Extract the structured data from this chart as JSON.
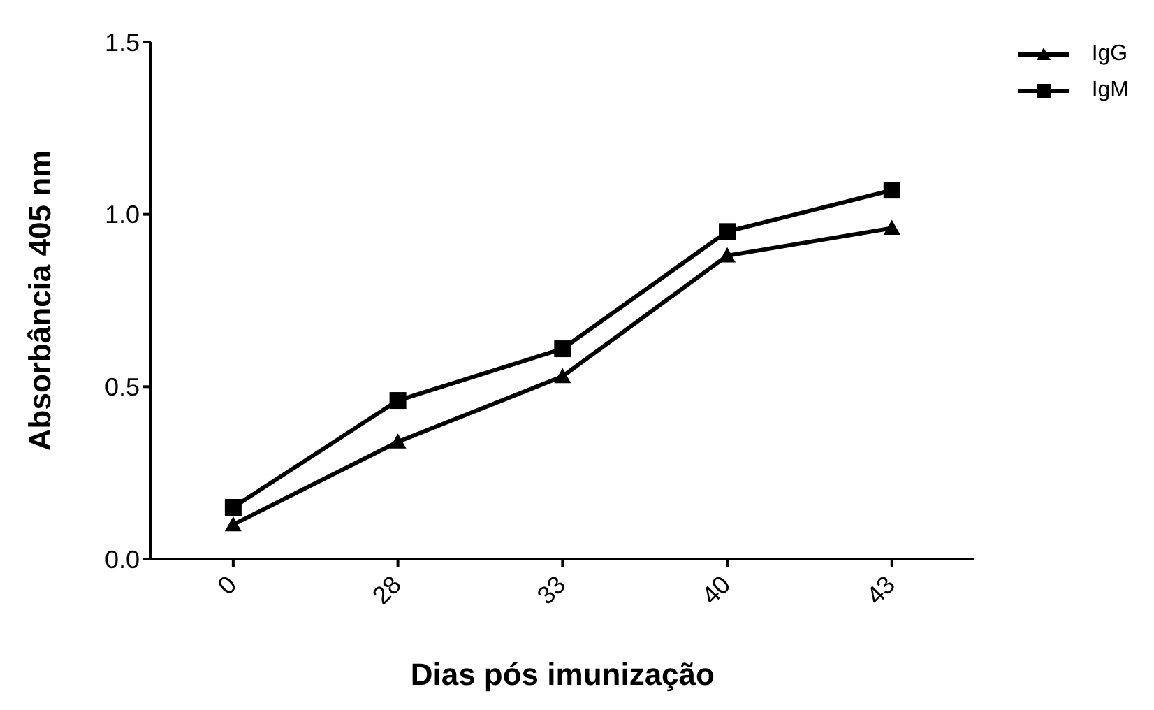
{
  "chart_data": {
    "type": "line",
    "xlabel": "Dias pós imunização",
    "ylabel": "Absorbância 405 nm",
    "categories": [
      "0",
      "28",
      "33",
      "40",
      "43"
    ],
    "series": [
      {
        "name": "IgG",
        "color": "#000000",
        "marker": "triangle",
        "values": [
          0.1,
          0.34,
          0.53,
          0.88,
          0.96
        ]
      },
      {
        "name": "IgM",
        "color": "#000000",
        "marker": "square",
        "values": [
          0.15,
          0.46,
          0.61,
          0.95,
          1.07
        ]
      }
    ],
    "ylim": [
      0,
      1.5
    ],
    "yticks": [
      {
        "value": 0,
        "label": "0.0"
      },
      {
        "value": 0.5,
        "label": "0.5"
      },
      {
        "value": 1,
        "label": "1.0"
      },
      {
        "value": 1.5,
        "label": "1.5"
      }
    ],
    "grid": false,
    "legend": "top right",
    "line_style": "solid"
  }
}
